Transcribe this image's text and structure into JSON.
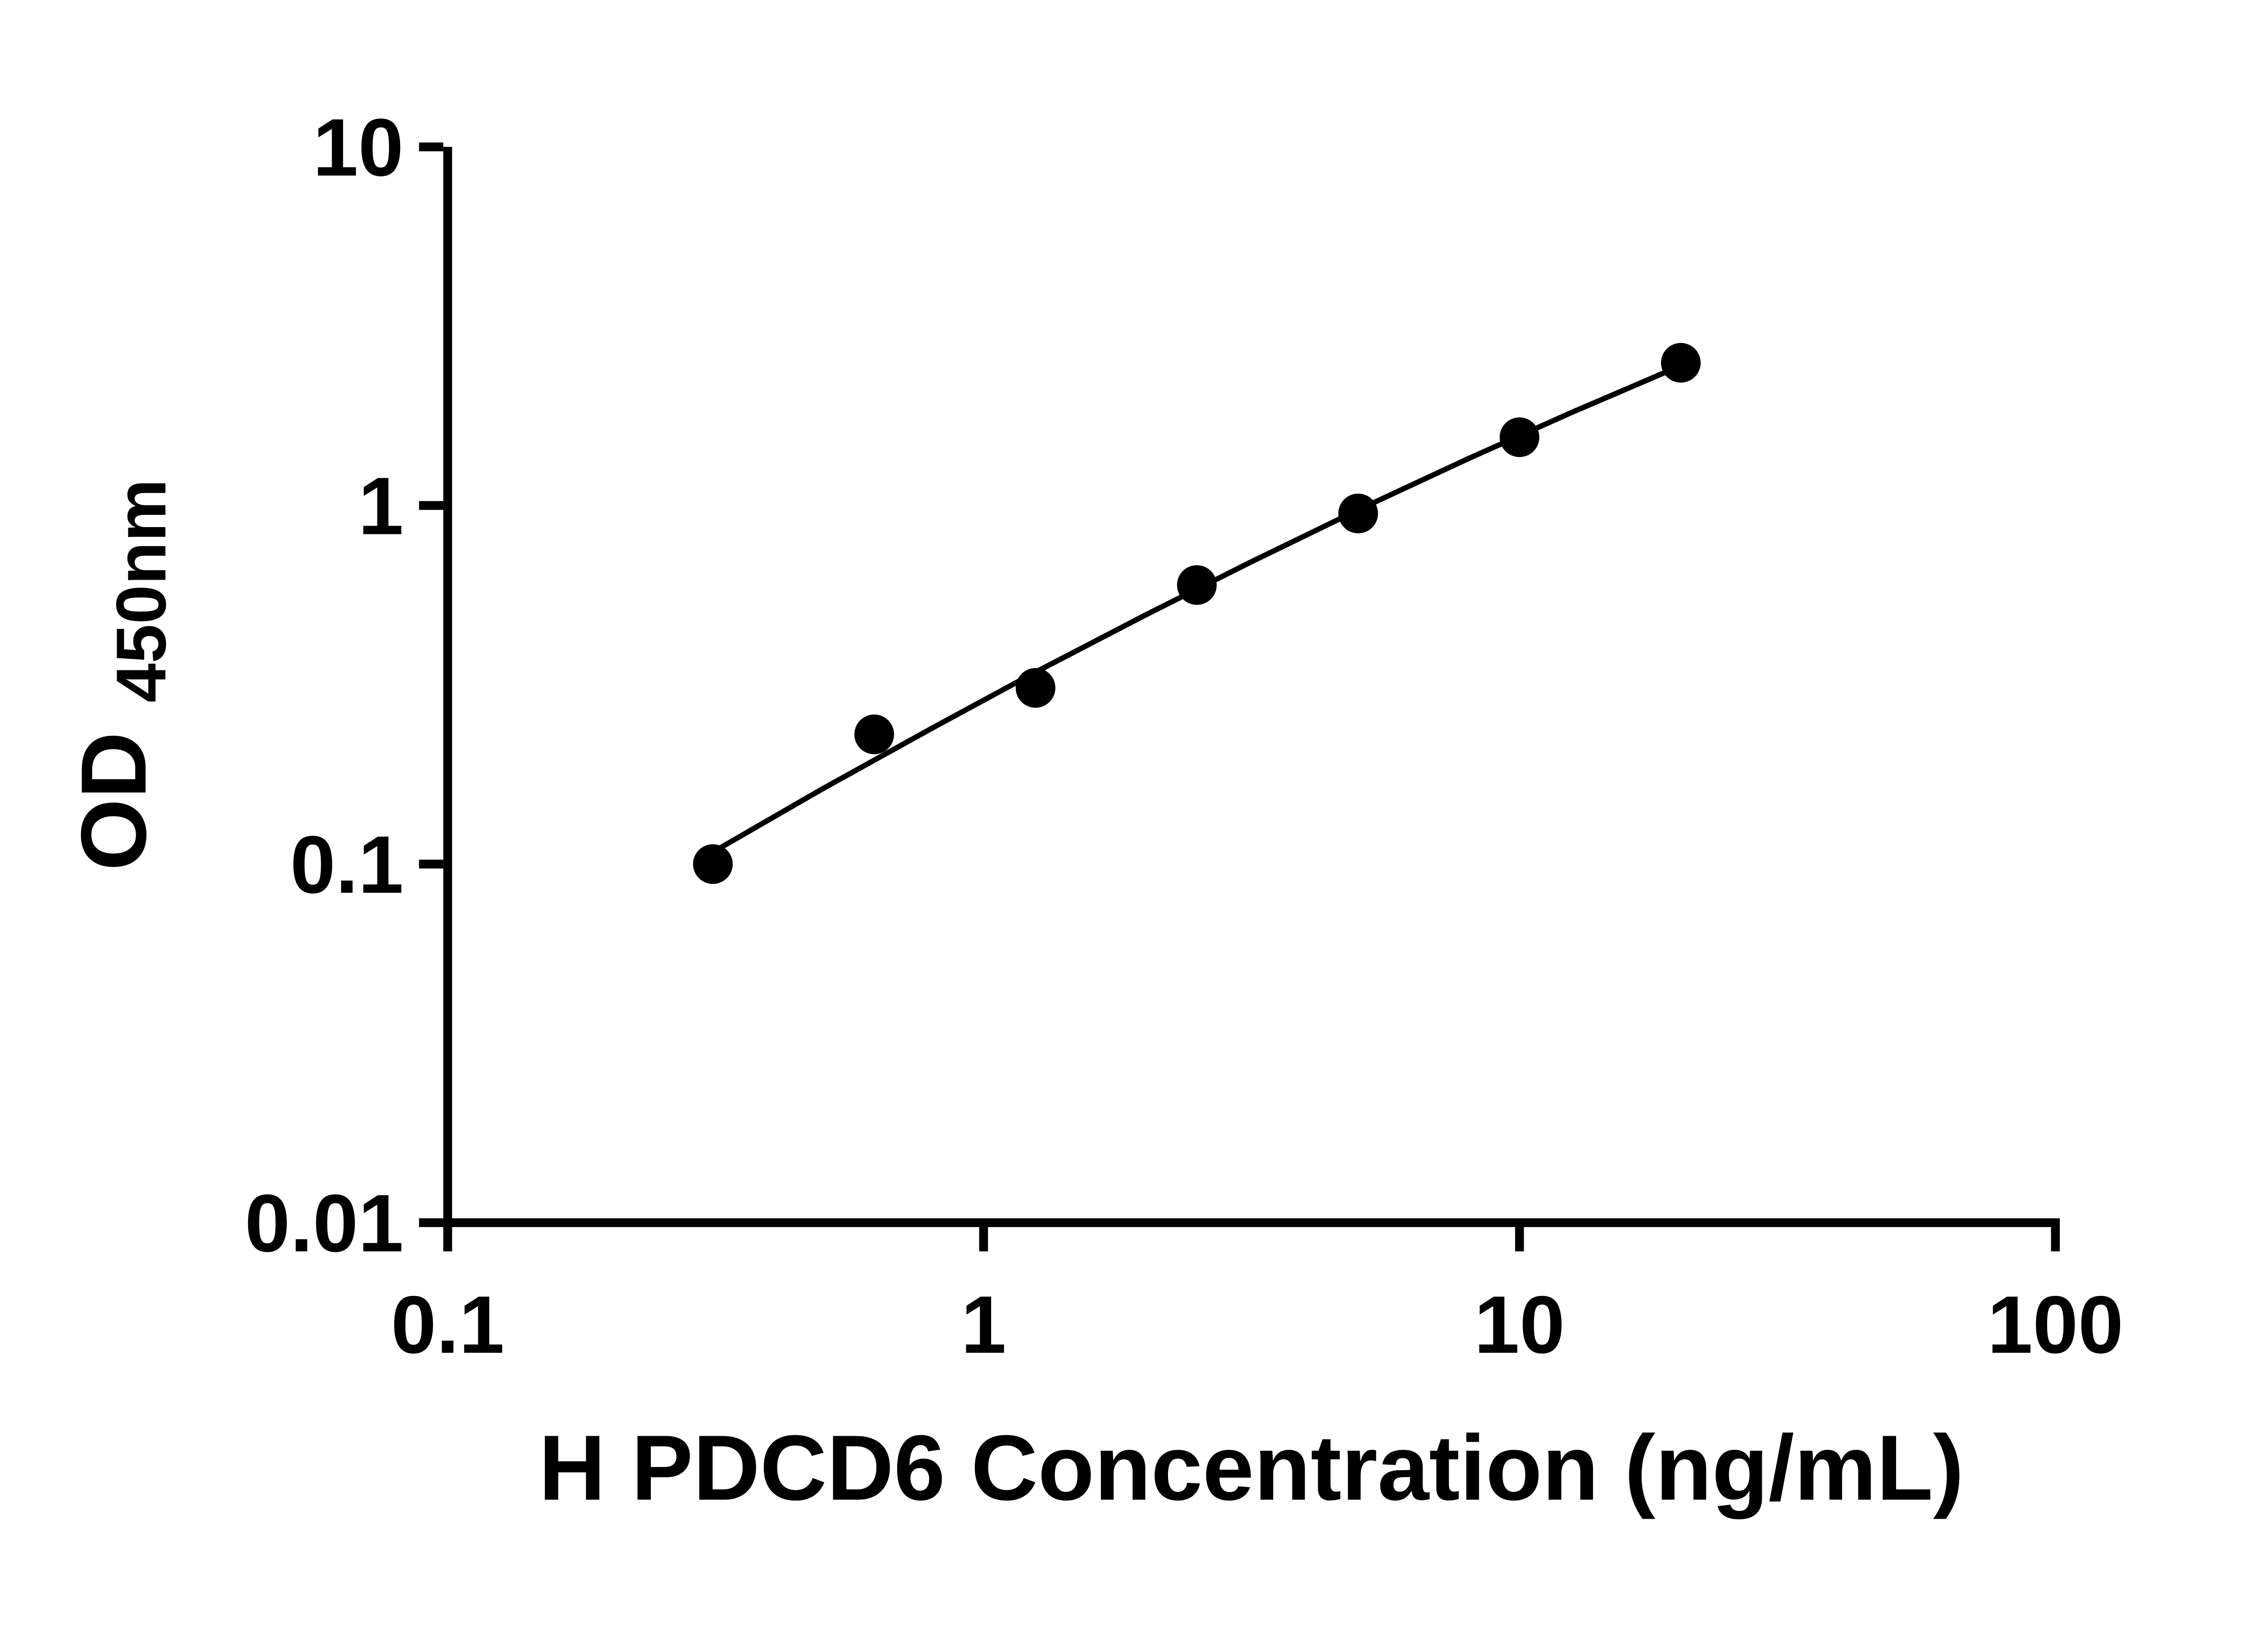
{
  "chart_data": {
    "type": "scatter",
    "title": "",
    "xlabel": "H PDCD6 Concentration (ng/mL)",
    "ylabel_main": "OD",
    "ylabel_sub": "450nm",
    "x_scale": "log",
    "y_scale": "log",
    "xlim": [
      0.1,
      100
    ],
    "ylim": [
      0.01,
      10
    ],
    "x_ticks": [
      0.1,
      1,
      10,
      100
    ],
    "x_tick_labels": [
      "0.1",
      "1",
      "10",
      "100"
    ],
    "y_ticks": [
      0.01,
      0.1,
      1,
      10
    ],
    "y_tick_labels": [
      "0.01",
      "0.1",
      "1",
      "10"
    ],
    "grid": false,
    "legend": "none",
    "colors": {
      "axis": "#000000",
      "marker": "#000000",
      "line": "#000000",
      "background": "#ffffff"
    },
    "series": [
      {
        "name": "fit-line",
        "type": "line",
        "color": "#000000",
        "x": [
          0.3125,
          0.5,
          0.8,
          1.25,
          2.0,
          3.15,
          5.0,
          8.0,
          12.5,
          20
        ],
        "y": [
          0.108,
          0.162,
          0.239,
          0.343,
          0.494,
          0.695,
          0.972,
          1.348,
          1.816,
          2.454
        ]
      },
      {
        "name": "standard-curve-points",
        "type": "scatter",
        "marker": "circle",
        "color": "#000000",
        "x": [
          0.3125,
          0.625,
          1.25,
          2.5,
          5,
          10,
          20
        ],
        "y": [
          0.1,
          0.23,
          0.31,
          0.6,
          0.95,
          1.55,
          2.5
        ]
      }
    ]
  }
}
